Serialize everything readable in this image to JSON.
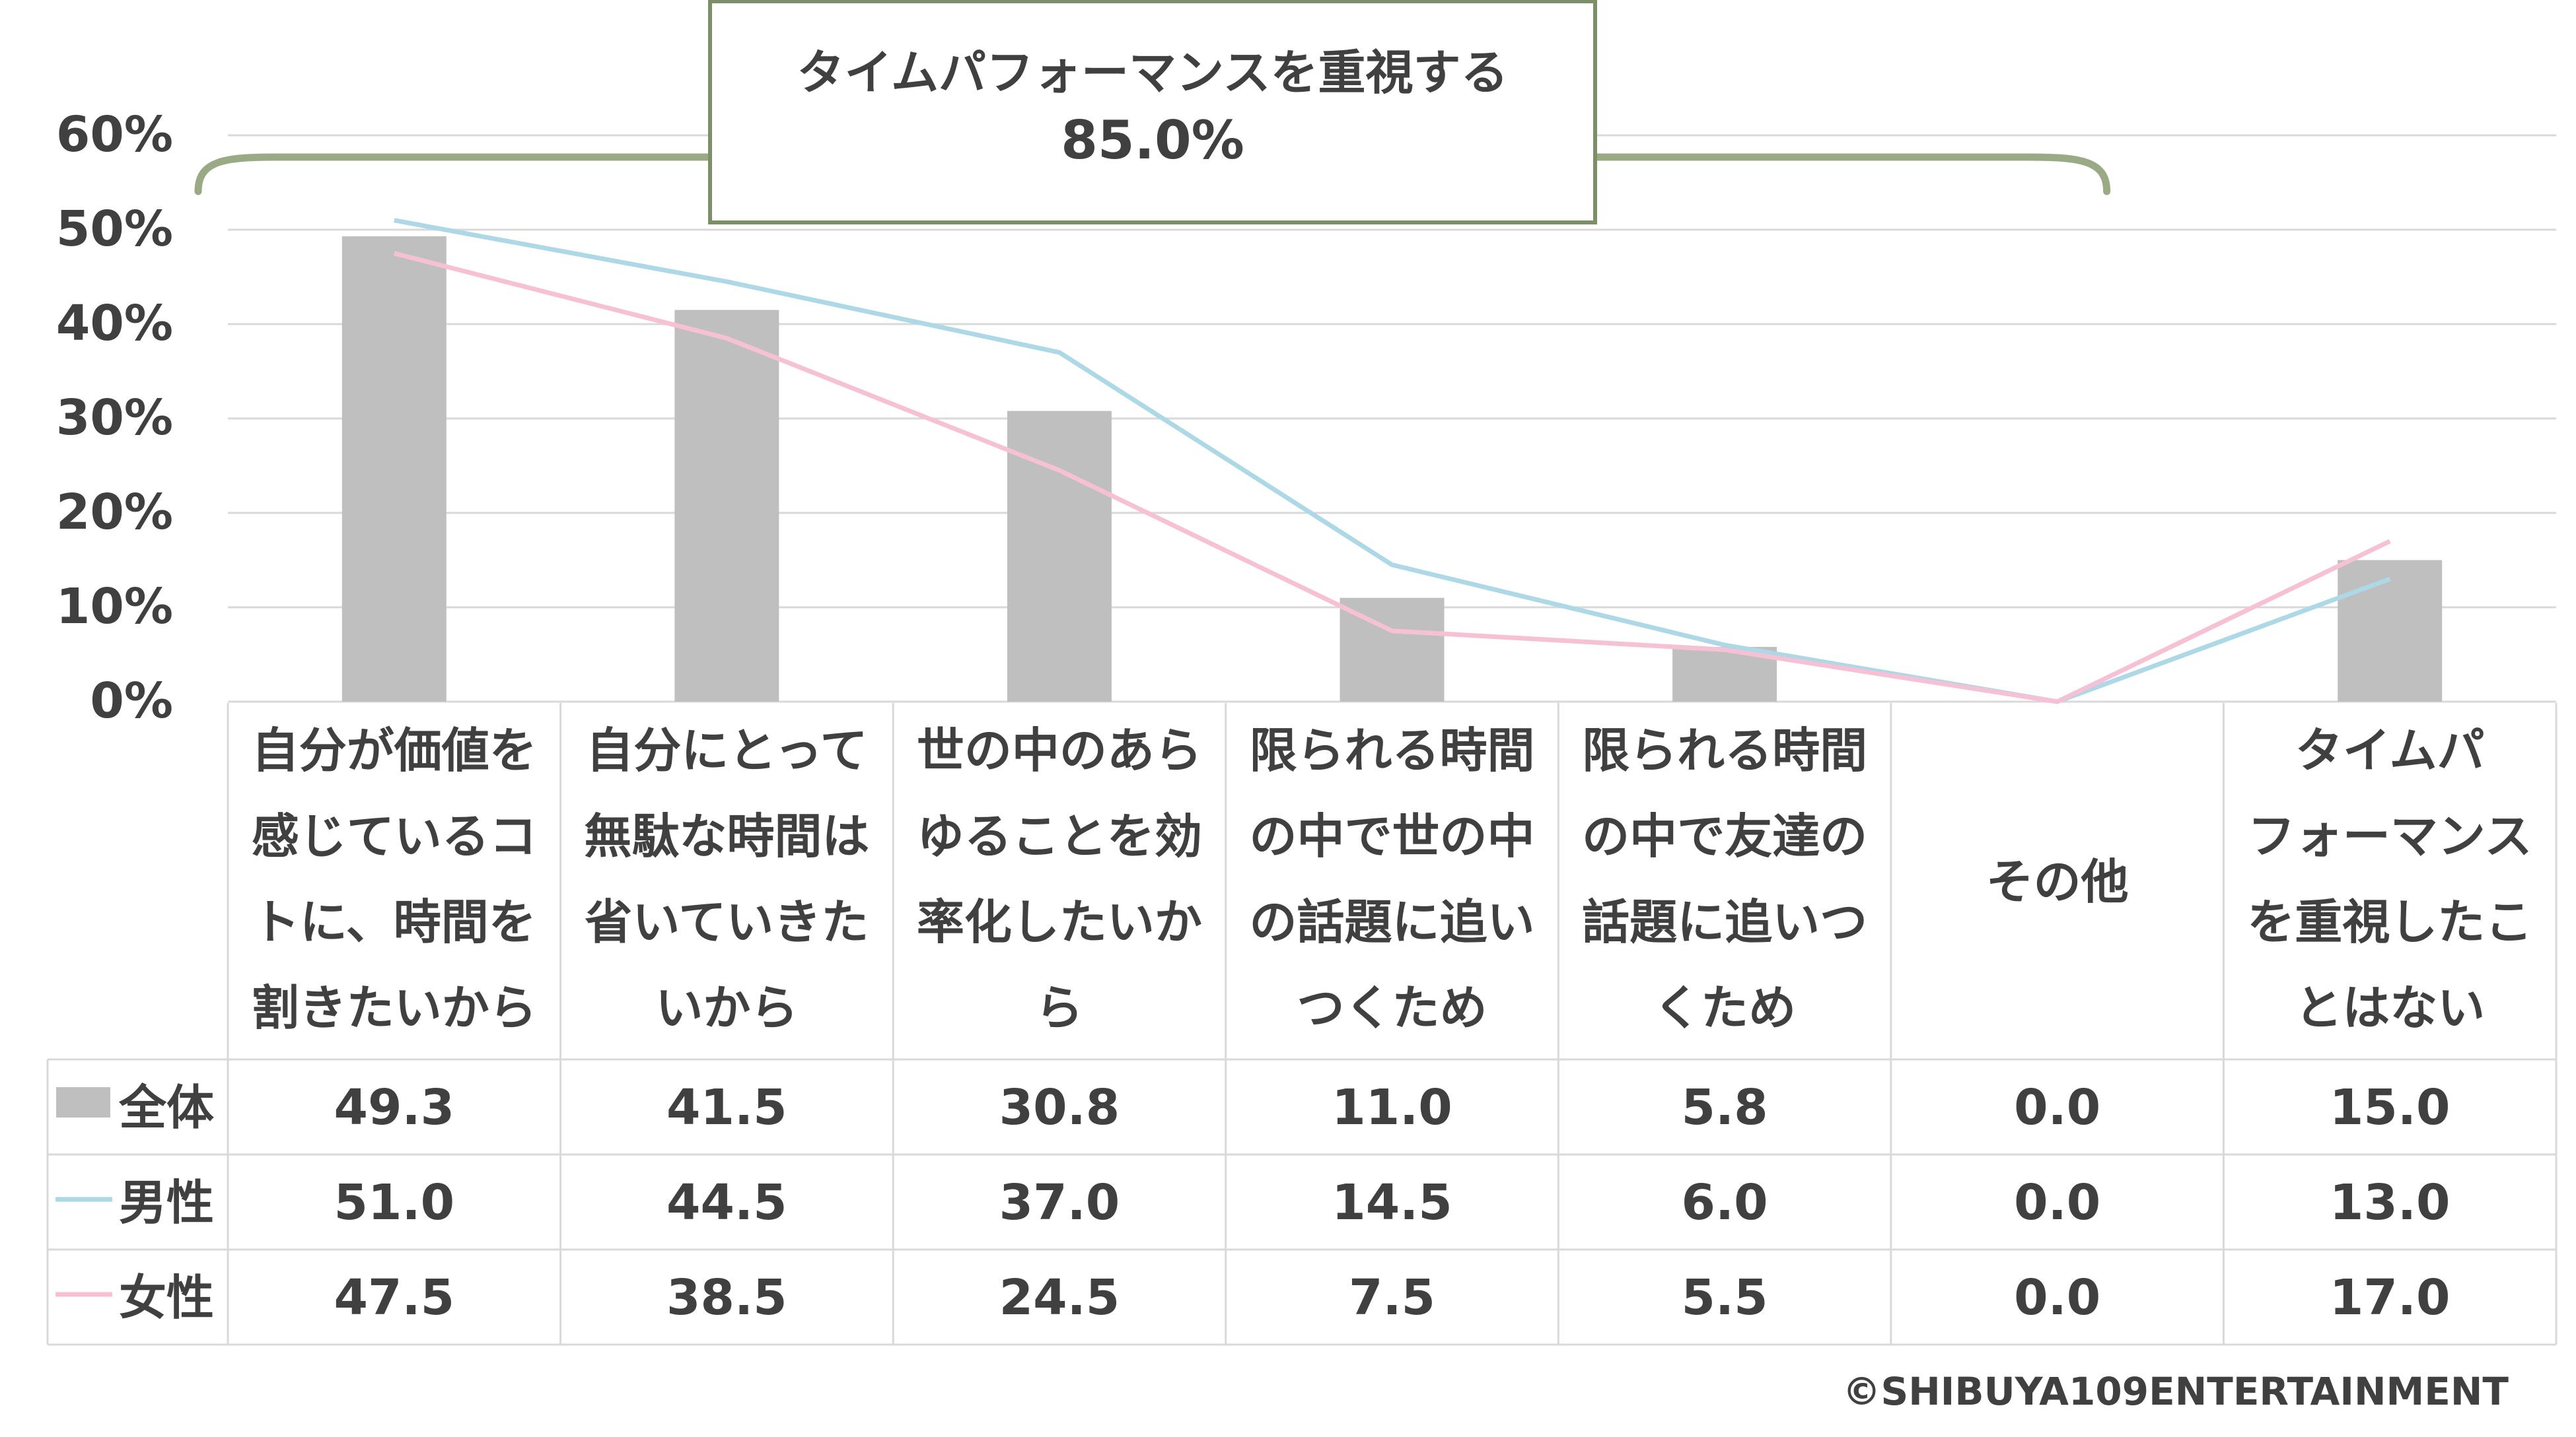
{
  "chart_data": {
    "type": "bar",
    "title": "",
    "xlabel": "",
    "ylabel": "",
    "ylim": [
      0,
      60
    ],
    "ytick_labels": [
      "0%",
      "10%",
      "20%",
      "30%",
      "40%",
      "50%",
      "60%"
    ],
    "grid": true,
    "categories": [
      [
        "自分が価値を",
        "感じているコ",
        "トに、時間を",
        "割きたいから"
      ],
      [
        "自分にとって",
        "無駄な時間は",
        "省いていきた",
        "いから"
      ],
      [
        "世の中のあら",
        "ゆることを効",
        "率化したいか",
        "ら"
      ],
      [
        "限られる時間",
        "の中で世の中",
        "の話題に追い",
        "つくため"
      ],
      [
        "限られる時間",
        "の中で友達の",
        "話題に追いつ",
        "くため"
      ],
      [
        "その他"
      ],
      [
        "タイムパ",
        "フォーマンス",
        "を重視したこ",
        "とはない"
      ]
    ],
    "series": [
      {
        "name": "全体",
        "kind": "bar",
        "color": "#bfbfbf",
        "values": [
          49.3,
          41.5,
          30.8,
          11.0,
          5.8,
          0.0,
          15.0
        ],
        "labels": [
          "49.3",
          "41.5",
          "30.8",
          "11.0",
          "5.8",
          "0.0",
          "15.0"
        ]
      },
      {
        "name": "男性",
        "kind": "line",
        "color": "#add8e6",
        "values": [
          51.0,
          44.5,
          37.0,
          14.5,
          6.0,
          0.0,
          13.0
        ],
        "labels": [
          "51.0",
          "44.5",
          "37.0",
          "14.5",
          "6.0",
          "0.0",
          "13.0"
        ]
      },
      {
        "name": "女性",
        "kind": "line",
        "color": "#f7c1d5",
        "values": [
          47.5,
          38.5,
          24.5,
          7.5,
          5.5,
          0.0,
          17.0
        ],
        "labels": [
          "47.5",
          "38.5",
          "24.5",
          "7.5",
          "5.5",
          "0.0",
          "17.0"
        ]
      }
    ],
    "annotation": {
      "line1": "タイムパフォーマンスを重視する",
      "line2": "85.0%",
      "bracket_color": "#9aaa85",
      "spans_categories": [
        0,
        5
      ]
    },
    "data_table": true
  },
  "copyright": "©SHIBUYA109ENTERTAINMENT"
}
